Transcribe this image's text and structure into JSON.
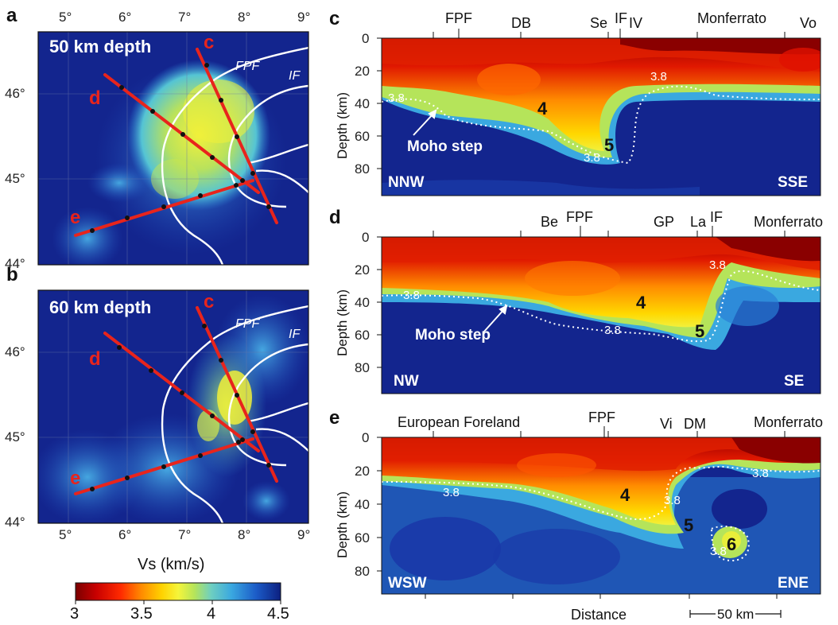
{
  "map_panels": [
    {
      "letter": "a",
      "title": "50 km depth",
      "lon_ticks": [
        "5°",
        "6°",
        "7°",
        "8°",
        "9°"
      ],
      "lat_ticks": [
        "46°",
        "45°",
        "44°"
      ],
      "fault_labels": [
        "FPF",
        "IF"
      ],
      "profile_labels": [
        "c",
        "d",
        "e"
      ]
    },
    {
      "letter": "b",
      "title": "60 km depth",
      "lon_ticks": [
        "5°",
        "6°",
        "7°",
        "8°",
        "9°"
      ],
      "lat_ticks": [
        "46°",
        "45°",
        "44°"
      ],
      "fault_labels": [
        "FPF",
        "IF"
      ],
      "profile_labels": [
        "c",
        "d",
        "e"
      ]
    }
  ],
  "map_xlabel": "Vs (km/s)",
  "colorbar": {
    "ticks": [
      "3",
      "3.5",
      "4",
      "4.5"
    ],
    "colors": [
      "#7a0000",
      "#c80000",
      "#ff2a00",
      "#ff8a00",
      "#ffd200",
      "#f5f53a",
      "#b5e45a",
      "#6fcfc0",
      "#3aa8e0",
      "#1c5cc8",
      "#0c1f80"
    ]
  },
  "section_panels": [
    {
      "letter": "c",
      "top_labels": [
        "FPF",
        "DB",
        "Se",
        "IF",
        "IV",
        "Monferrato",
        "Vo"
      ],
      "ylabel": "Depth (km)",
      "yticks": [
        "0",
        "20",
        "40",
        "60",
        "80"
      ],
      "left_dir": "NNW",
      "right_dir": "SSE",
      "annotations": [
        "Moho step",
        "4",
        "5",
        "3.8",
        "3.8",
        "3.8"
      ]
    },
    {
      "letter": "d",
      "top_labels": [
        "Be",
        "FPF",
        "GP",
        "La",
        "IF",
        "Monferrato"
      ],
      "ylabel": "Depth (km)",
      "yticks": [
        "0",
        "20",
        "40",
        "60",
        "80"
      ],
      "left_dir": "NW",
      "right_dir": "SE",
      "annotations": [
        "Moho step",
        "4",
        "5",
        "3.8",
        "3.8",
        "3.8"
      ]
    },
    {
      "letter": "e",
      "top_labels": [
        "European Foreland",
        "FPF",
        "Vi",
        "DM",
        "Monferrato"
      ],
      "ylabel": "Depth (km)",
      "yticks": [
        "0",
        "20",
        "40",
        "60",
        "80"
      ],
      "left_dir": "WSW",
      "right_dir": "ENE",
      "annotations": [
        "4",
        "5",
        "6",
        "3.8",
        "3.8",
        "3.8",
        "3.8"
      ]
    }
  ],
  "section_xlabel": "Distance",
  "scale_bar": "50 km"
}
